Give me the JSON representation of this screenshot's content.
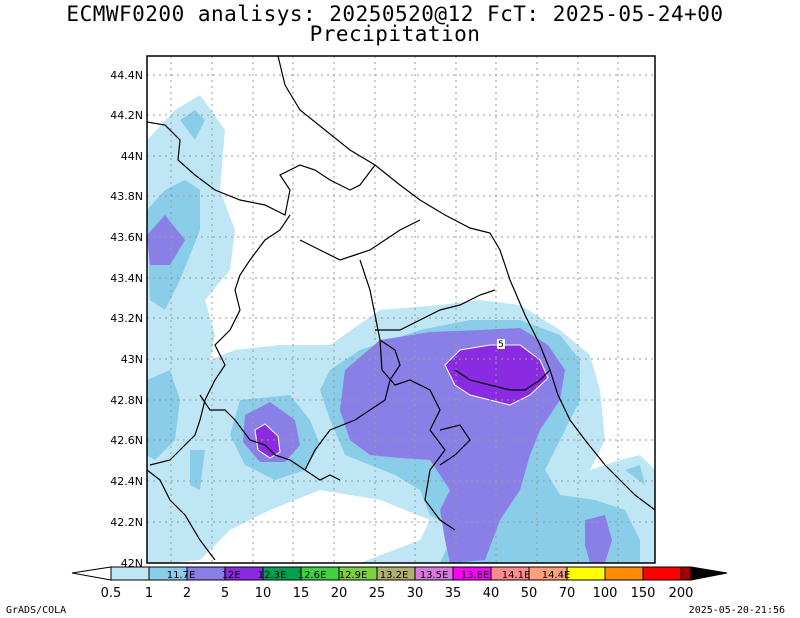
{
  "header": {
    "line1": "ECMWF0200 analisys: 20250520@12 FcT: 2025-05-24+00",
    "line2": "Precipitation"
  },
  "map": {
    "lat_labels": [
      "44.4N",
      "44.2N",
      "44N",
      "43.8N",
      "43.6N",
      "43.4N",
      "43.2N",
      "43N",
      "42.8N",
      "42.6N",
      "42.4N",
      "42.2N",
      "42N"
    ],
    "lon_labels": [
      "11.7E",
      "12E",
      "12.3E",
      "12.6E",
      "12.9E",
      "13.2E",
      "13.5E",
      "13.8E",
      "14.1E",
      "14.4E"
    ],
    "contour_label": "5"
  },
  "colorbar": {
    "values": [
      "0.5",
      "1",
      "2",
      "5",
      "10",
      "15",
      "20",
      "25",
      "30",
      "35",
      "40",
      "50",
      "70",
      "100",
      "150",
      "200"
    ],
    "colors": [
      "#bfe6f5",
      "#8acde8",
      "#8a7fe6",
      "#8a2be2",
      "#00a050",
      "#40d040",
      "#b0b070",
      "#d87ae0",
      "#ff00ff",
      "#ff8c8c",
      "#ffff00",
      "#ff8c00",
      "#ff0000",
      "#a00000",
      "#700000"
    ]
  },
  "footer": {
    "left": "GrADS/COLA",
    "right": "2025-05-20-21:56"
  }
}
